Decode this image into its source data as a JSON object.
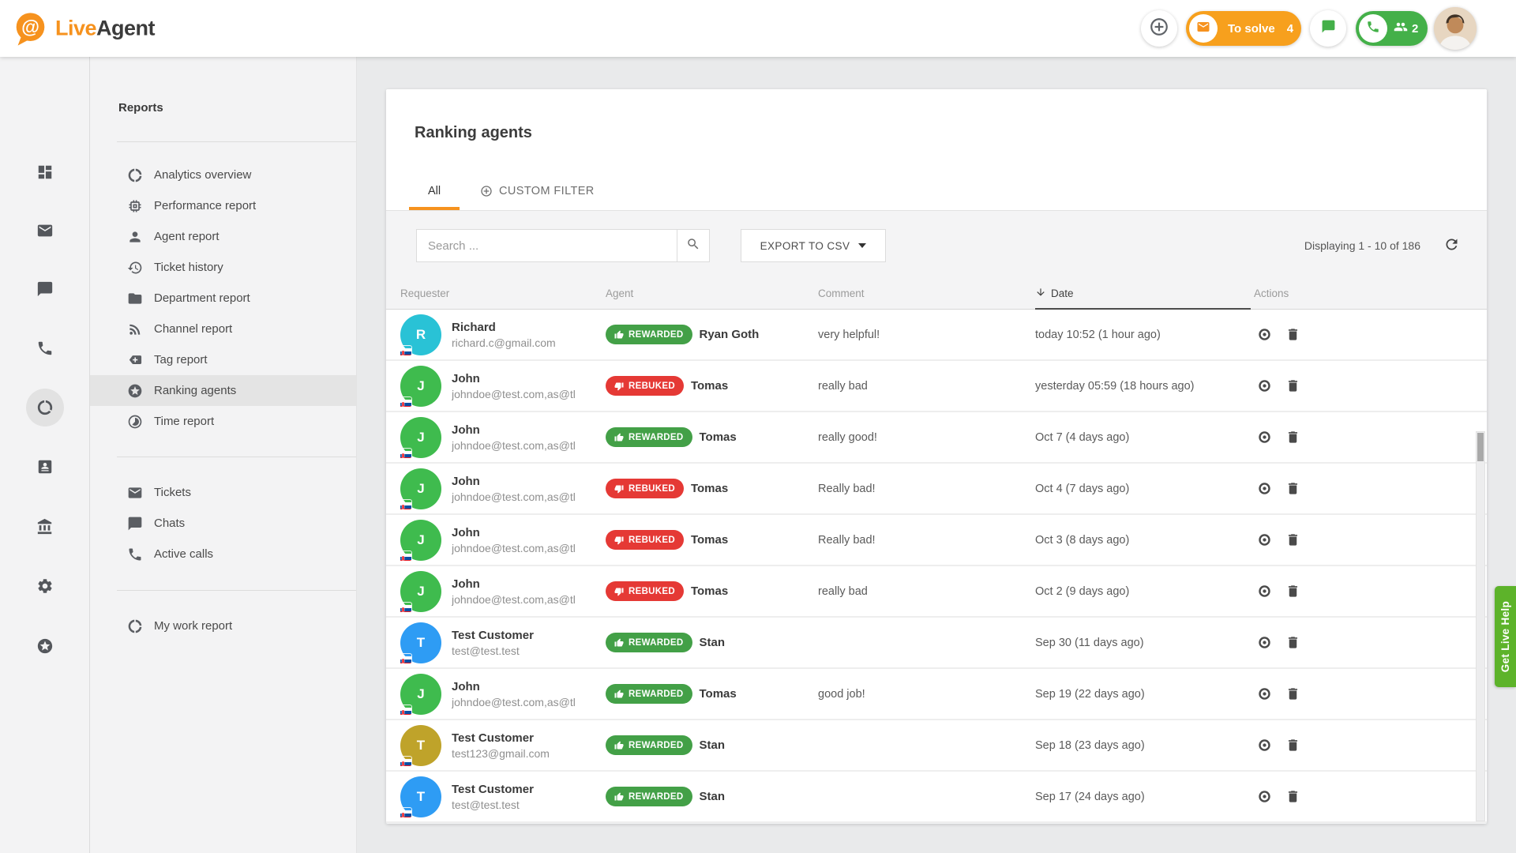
{
  "colors": {
    "accent_orange": "#f6921e",
    "tosolve_orange": "#f7a01d",
    "header_green": "#44b049",
    "rewarded_green": "#43a047",
    "rebuked_red": "#e53935",
    "live_help_green": "#5db32a"
  },
  "header": {
    "logo_live": "Live",
    "logo_agent": "Agent",
    "to_solve_label": "To solve",
    "to_solve_count": "4",
    "calls_count": "2"
  },
  "rail": {
    "items": [
      {
        "name": "dashboard",
        "icon": "dashboard",
        "active": false
      },
      {
        "name": "tickets",
        "icon": "email",
        "active": false
      },
      {
        "name": "chats",
        "icon": "chat",
        "active": false
      },
      {
        "name": "calls",
        "icon": "phone",
        "active": false
      },
      {
        "name": "reports",
        "icon": "data-usage",
        "active": true
      },
      {
        "name": "customers",
        "icon": "contact-card",
        "active": false
      },
      {
        "name": "company",
        "icon": "bank",
        "active": false
      },
      {
        "name": "settings",
        "icon": "gear",
        "active": false
      },
      {
        "name": "gamification",
        "icon": "star-circle",
        "active": false
      }
    ]
  },
  "nav": {
    "title": "Reports",
    "report_items": [
      {
        "icon": "donut-large",
        "label": "Analytics overview",
        "active": false
      },
      {
        "icon": "memory",
        "label": "Performance report",
        "active": false
      },
      {
        "icon": "person",
        "label": "Agent report",
        "active": false
      },
      {
        "icon": "history",
        "label": "Ticket history",
        "active": false
      },
      {
        "icon": "folder",
        "label": "Department report",
        "active": false
      },
      {
        "icon": "rss",
        "label": "Channel report",
        "active": false
      },
      {
        "icon": "tag-add",
        "label": "Tag report",
        "active": false
      },
      {
        "icon": "star-circle",
        "label": "Ranking agents",
        "active": true
      },
      {
        "icon": "timelapse",
        "label": "Time report",
        "active": false
      }
    ],
    "secondary_items": [
      {
        "icon": "email",
        "label": "Tickets",
        "active": false
      },
      {
        "icon": "chat",
        "label": "Chats",
        "active": false
      },
      {
        "icon": "phone",
        "label": "Active calls",
        "active": false
      }
    ],
    "footer_items": [
      {
        "icon": "donut-large",
        "label": "My work report",
        "active": false
      }
    ]
  },
  "main": {
    "title": "Ranking agents",
    "tabs": [
      {
        "label": "All",
        "active": true
      },
      {
        "label": "CUSTOM FILTER",
        "active": false
      }
    ],
    "toolbar": {
      "search_placeholder": "Search ...",
      "export_label": "EXPORT TO CSV",
      "displaying": "Displaying 1 - 10 of 186"
    },
    "table": {
      "columns": [
        "Requester",
        "Agent",
        "Comment",
        "Date",
        "Actions"
      ],
      "sorted_column": "Date",
      "rows": [
        {
          "initial": "R",
          "avatar_color": "#29c2d6",
          "name": "Richard",
          "email": "richard.c@gmail.com",
          "badge": "REWARDED",
          "agent": "Ryan Goth",
          "comment": "very helpful!",
          "date": "today 10:52 (1 hour ago)"
        },
        {
          "initial": "J",
          "avatar_color": "#3fbb4e",
          "name": "John",
          "email": "johndoe@test.com,as@tl",
          "badge": "REBUKED",
          "agent": "Tomas",
          "comment": "really bad",
          "date": "yesterday 05:59 (18 hours ago)"
        },
        {
          "initial": "J",
          "avatar_color": "#3fbb4e",
          "name": "John",
          "email": "johndoe@test.com,as@tl",
          "badge": "REWARDED",
          "agent": "Tomas",
          "comment": "really good!",
          "date": "Oct 7 (4 days ago)"
        },
        {
          "initial": "J",
          "avatar_color": "#3fbb4e",
          "name": "John",
          "email": "johndoe@test.com,as@tl",
          "badge": "REBUKED",
          "agent": "Tomas",
          "comment": "Really bad!",
          "date": "Oct 4 (7 days ago)"
        },
        {
          "initial": "J",
          "avatar_color": "#3fbb4e",
          "name": "John",
          "email": "johndoe@test.com,as@tl",
          "badge": "REBUKED",
          "agent": "Tomas",
          "comment": "Really bad!",
          "date": "Oct 3 (8 days ago)"
        },
        {
          "initial": "J",
          "avatar_color": "#3fbb4e",
          "name": "John",
          "email": "johndoe@test.com,as@tl",
          "badge": "REBUKED",
          "agent": "Tomas",
          "comment": "really bad",
          "date": "Oct 2 (9 days ago)"
        },
        {
          "initial": "T",
          "avatar_color": "#2e9cf4",
          "name": "Test Customer",
          "email": "test@test.test",
          "badge": "REWARDED",
          "agent": "Stan",
          "comment": "",
          "date": "Sep 30 (11 days ago)"
        },
        {
          "initial": "J",
          "avatar_color": "#3fbb4e",
          "name": "John",
          "email": "johndoe@test.com,as@tl",
          "badge": "REWARDED",
          "agent": "Tomas",
          "comment": "good job!",
          "date": "Sep 19 (22 days ago)"
        },
        {
          "initial": "T",
          "avatar_color": "#bfa32a",
          "name": "Test Customer",
          "email": "test123@gmail.com",
          "badge": "REWARDED",
          "agent": "Stan",
          "comment": "",
          "date": "Sep 18 (23 days ago)"
        },
        {
          "initial": "T",
          "avatar_color": "#2e9cf4",
          "name": "Test Customer",
          "email": "test@test.test",
          "badge": "REWARDED",
          "agent": "Stan",
          "comment": "",
          "date": "Sep 17 (24 days ago)"
        }
      ]
    }
  },
  "live_help": {
    "label": "Get Live Help"
  }
}
